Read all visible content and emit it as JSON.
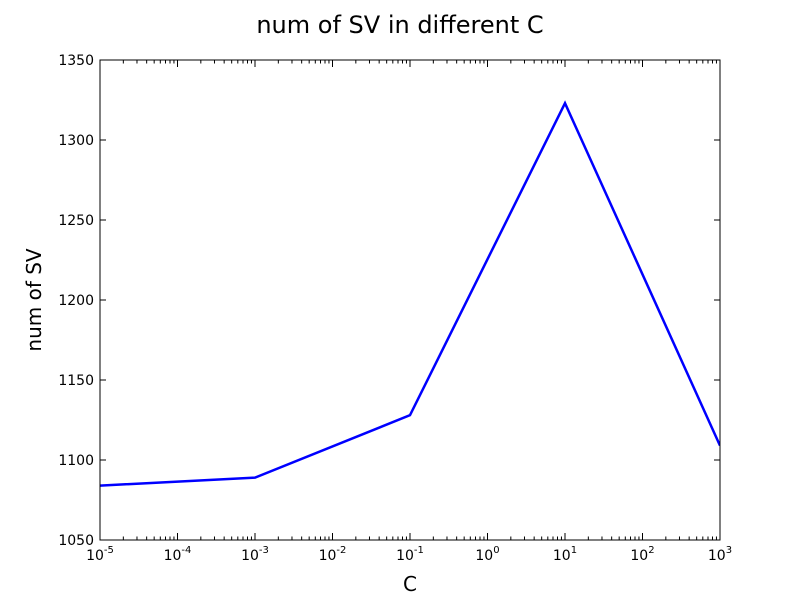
{
  "chart_data": {
    "type": "line",
    "title": "num of SV in different C",
    "xlabel": "C",
    "ylabel": "num of SV",
    "x_scale": "log",
    "x_base": "10",
    "x": [
      1e-05,
      0.001,
      0.1,
      10,
      1000
    ],
    "xlim": [
      1e-05,
      1000
    ],
    "x_tick_exponents": [
      "-5",
      "-4",
      "-3",
      "-2",
      "-1",
      "0",
      "1",
      "2",
      "3"
    ],
    "ylim": [
      1050,
      1350
    ],
    "y_ticks": [
      "1050",
      "1100",
      "1150",
      "1200",
      "1250",
      "1300",
      "1350"
    ],
    "grid": false,
    "series": [
      {
        "values": [
          1084,
          1089,
          1128,
          1323,
          1109
        ],
        "color": "#0000ff"
      }
    ]
  }
}
